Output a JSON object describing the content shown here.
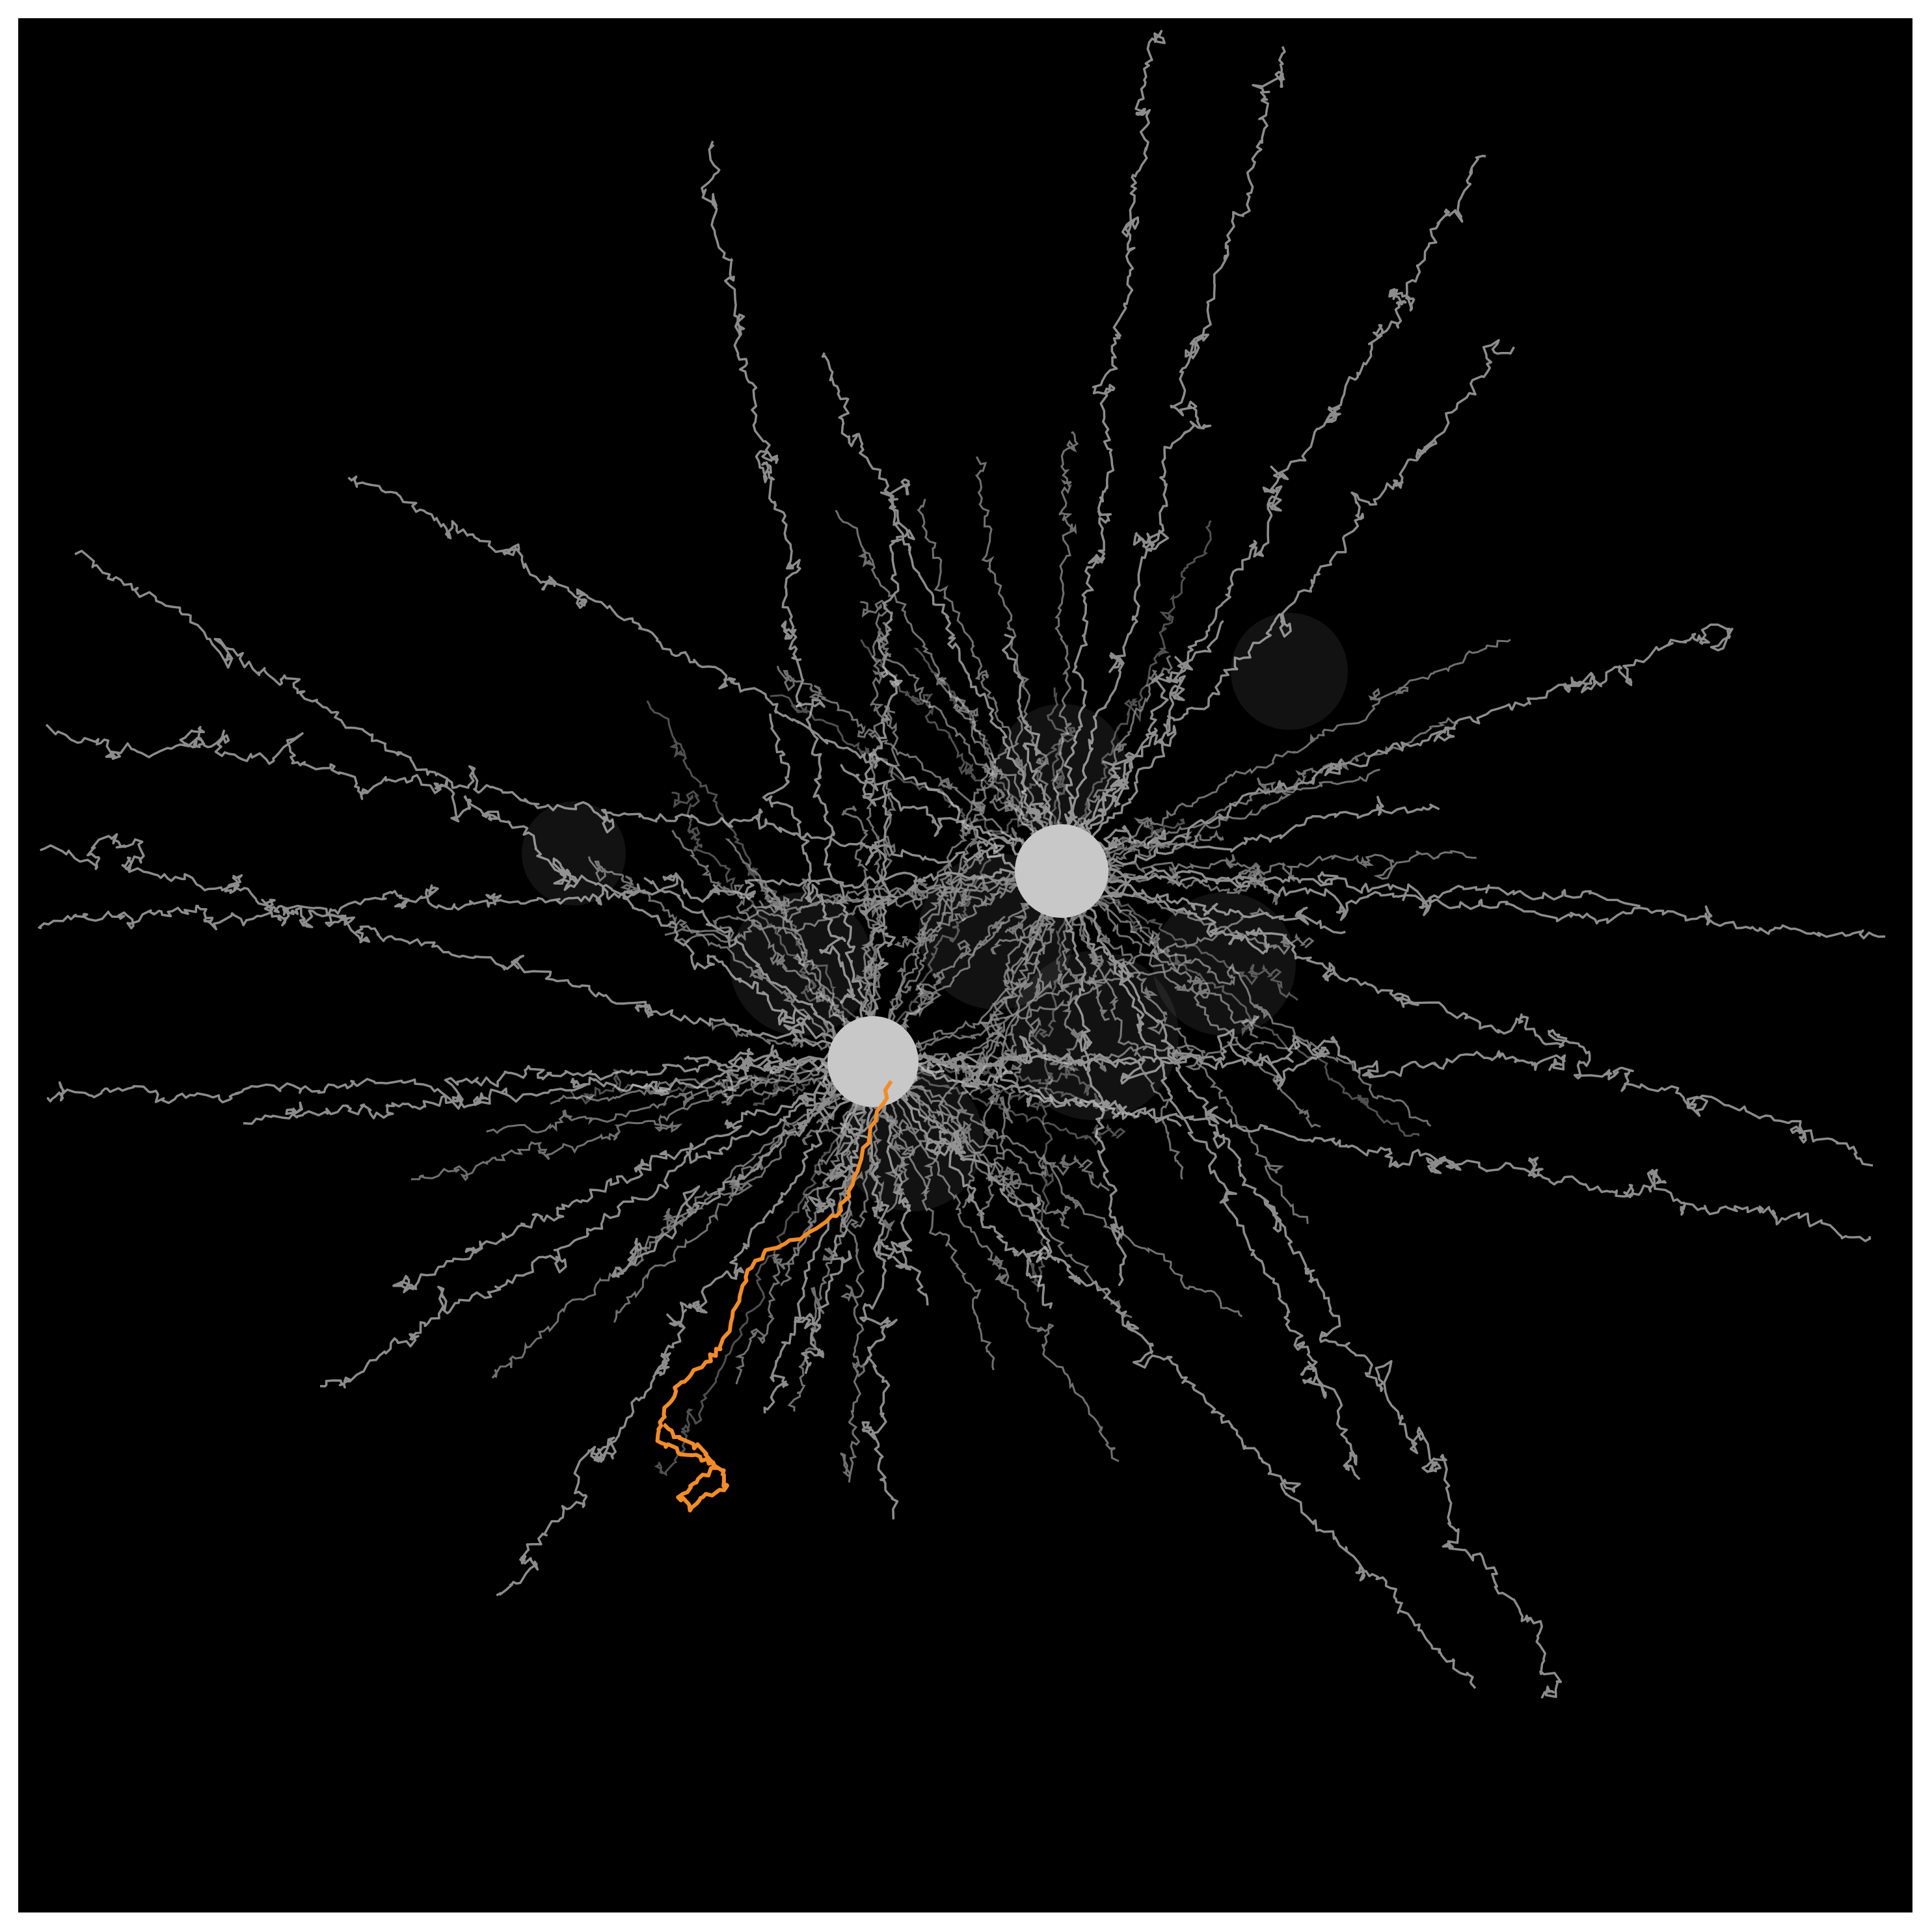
{
  "figure": {
    "background_color": "#000000",
    "frame_color": "#ffffff",
    "trajectory_color": "#8c8c8c",
    "trajectory_glow_color": "#e6e6e6",
    "highlight_trajectory_color": "#f28c28",
    "source_color": "#c8c8c8",
    "sources": [
      {
        "name": "upper-right-source"
      },
      {
        "name": "lower-left-source"
      }
    ],
    "highlighted_trajectory": {
      "name": "orange-track"
    }
  }
}
